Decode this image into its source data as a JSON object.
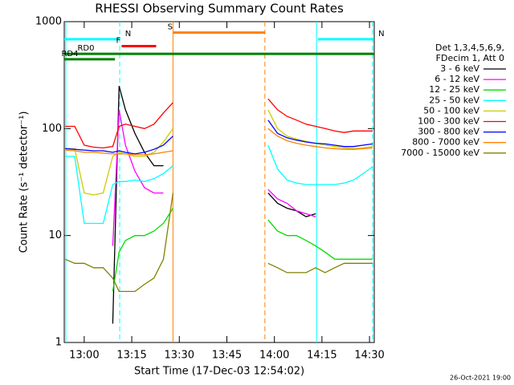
{
  "chart_data": {
    "type": "line",
    "title": "RHESSI Observing Summary Count Rates",
    "x_label": "Start Time (17-Dec-03 12:54:02)",
    "y_label": "Count Rate (s⁻¹ detector⁻¹)",
    "footer": "26-Oct-2021 19:00",
    "legend_title": [
      "Det 1,3,4,5,6,9,",
      "FDecim 1, Att 0"
    ],
    "log_y": true,
    "xlim": [
      773.7,
      871.5
    ],
    "ylim": [
      1,
      1000
    ],
    "yticks": [
      1,
      10,
      100,
      1000
    ],
    "xticks": [
      {
        "value": 780,
        "label": "13:00"
      },
      {
        "value": 795,
        "label": "13:15"
      },
      {
        "value": 810,
        "label": "13:30"
      },
      {
        "value": 825,
        "label": "13:45"
      },
      {
        "value": 840,
        "label": "14:00"
      },
      {
        "value": 855,
        "label": "14:15"
      },
      {
        "value": 870,
        "label": "14:30"
      }
    ],
    "x": [
      774,
      777,
      780,
      783,
      786,
      789,
      791,
      793,
      796,
      799,
      802,
      805,
      808,
      823,
      838,
      841,
      844,
      847,
      850,
      853,
      856,
      859,
      862,
      865,
      868,
      871
    ],
    "series": [
      {
        "name": "3 - 6 keV",
        "color": "#000000",
        "values": [
          null,
          null,
          null,
          null,
          null,
          1.5,
          250,
          150,
          90,
          60,
          45,
          45,
          null,
          null,
          25,
          20,
          18,
          17,
          15,
          16,
          null,
          null,
          null,
          null,
          null,
          null
        ]
      },
      {
        "name": "6 - 12 keV",
        "color": "#ff00ff",
        "values": [
          null,
          null,
          null,
          null,
          null,
          8,
          150,
          70,
          40,
          28,
          25,
          25,
          null,
          null,
          27,
          22,
          20,
          17,
          16,
          15,
          null,
          null,
          null,
          null,
          null,
          null
        ]
      },
      {
        "name": "12 - 25 keV",
        "color": "#00dd00",
        "values": [
          null,
          null,
          null,
          null,
          null,
          3,
          7,
          9,
          10,
          10,
          11,
          13,
          18,
          null,
          14,
          11,
          10,
          10,
          9,
          8,
          7,
          6,
          6,
          6,
          6,
          6
        ]
      },
      {
        "name": "25 - 50 keV",
        "color": "#00ffff",
        "values": [
          55,
          55,
          13,
          13,
          13,
          30,
          32,
          32,
          33,
          32,
          34,
          38,
          45,
          null,
          70,
          42,
          33,
          31,
          30,
          30,
          30,
          30,
          31,
          33,
          38,
          44
        ]
      },
      {
        "name": "50 - 100 keV",
        "color": "#cccc00",
        "values": [
          65,
          65,
          25,
          24,
          25,
          55,
          60,
          58,
          55,
          55,
          60,
          75,
          100,
          null,
          150,
          100,
          85,
          80,
          76,
          73,
          70,
          68,
          66,
          65,
          66,
          68
        ]
      },
      {
        "name": "100 - 300 keV",
        "color": "#ff0000",
        "values": [
          105,
          105,
          70,
          67,
          66,
          68,
          105,
          110,
          105,
          100,
          110,
          140,
          175,
          null,
          190,
          150,
          130,
          120,
          110,
          105,
          100,
          95,
          92,
          95,
          95,
          95
        ]
      },
      {
        "name": "300 - 800 keV",
        "color": "#0000ff",
        "values": [
          65,
          64,
          63,
          62,
          62,
          60,
          62,
          60,
          58,
          60,
          64,
          70,
          85,
          null,
          120,
          90,
          82,
          78,
          75,
          73,
          72,
          70,
          68,
          68,
          70,
          72
        ]
      },
      {
        "name": "800 - 7000 keV",
        "color": "#ff8000",
        "values": [
          63,
          62,
          60,
          60,
          59,
          58,
          58,
          58,
          57,
          57,
          58,
          60,
          62,
          null,
          100,
          85,
          77,
          73,
          70,
          68,
          66,
          65,
          64,
          64,
          65,
          66
        ]
      },
      {
        "name": "7000 - 15000 keV",
        "color": "#808000",
        "values": [
          6,
          5.5,
          5.5,
          5,
          5,
          4,
          3,
          3,
          3,
          3.5,
          4,
          6,
          25,
          null,
          5.5,
          5,
          4.5,
          4.5,
          4.5,
          5,
          4.5,
          5,
          5.5,
          5.5,
          5.5,
          5.5
        ]
      }
    ],
    "vlines": [
      {
        "x": 774.2,
        "color": "#00ffff",
        "dashed": false
      },
      {
        "x": 791.2,
        "color": "#00ffff",
        "dashed": true
      },
      {
        "x": 808,
        "color": "#ff8000",
        "dashed": false
      },
      {
        "x": 837,
        "color": "#ff8000",
        "dashed": true
      },
      {
        "x": 853.3,
        "color": "#00ffff",
        "dashed": false
      },
      {
        "x": 871,
        "color": "#00ffff",
        "dashed": true
      }
    ],
    "flag_bars": [
      {
        "label": "N",
        "color": "#00ffff",
        "y": 685,
        "x": [
          773.7,
          791.3
        ]
      },
      {
        "label": "N",
        "color": "#00ffff",
        "y": 685,
        "x": [
          853.7,
          871.2
        ]
      },
      {
        "label": "F",
        "color": "#ff0000",
        "y": 590,
        "x": [
          791.8,
          802.7
        ]
      },
      {
        "label": "S",
        "color": "#ff8000",
        "y": 790,
        "x": [
          808.1,
          837
        ]
      },
      {
        "label": "RD0",
        "color": "#008000",
        "y": 500,
        "x": [
          773.7,
          871.5
        ]
      },
      {
        "label": "RD4",
        "color": "#008000",
        "y": 445,
        "x": [
          773.7,
          789.7
        ]
      }
    ]
  }
}
